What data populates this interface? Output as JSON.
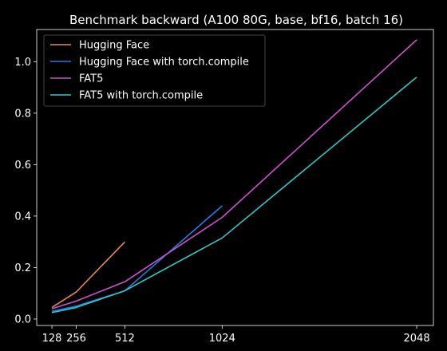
{
  "chart_data": {
    "type": "line",
    "title": "Benchmark backward (A100 80G, base, bf16, batch 16)",
    "xlabel": "",
    "ylabel": "",
    "x_ticks": [
      128,
      256,
      512,
      1024,
      2048
    ],
    "y_ticks": [
      0.0,
      0.2,
      0.4,
      0.6,
      0.8,
      1.0
    ],
    "y_tick_labels": [
      "0.0",
      "0.2",
      "0.4",
      "0.6",
      "0.8",
      "1.0"
    ],
    "xlim": [
      48,
      2136
    ],
    "ylim": [
      -0.025,
      1.125
    ],
    "grid": false,
    "legend": "top-left",
    "series": [
      {
        "name": "Hugging Face",
        "color": "#e08a5a",
        "x": [
          128,
          256,
          512
        ],
        "y": [
          0.045,
          0.105,
          0.3
        ]
      },
      {
        "name": "Hugging Face with torch.compile",
        "color": "#1f7fe8",
        "x": [
          128,
          256,
          512,
          1024
        ],
        "y": [
          0.03,
          0.05,
          0.11,
          0.44
        ]
      },
      {
        "name": "FAT5",
        "color": "#d050d0",
        "x": [
          128,
          256,
          512,
          1024,
          2048
        ],
        "y": [
          0.04,
          0.07,
          0.145,
          0.395,
          1.085
        ]
      },
      {
        "name": "FAT5 with torch.compile",
        "color": "#30c8c8",
        "x": [
          128,
          256,
          512,
          1024,
          2048
        ],
        "y": [
          0.025,
          0.045,
          0.11,
          0.315,
          0.94
        ]
      }
    ]
  }
}
